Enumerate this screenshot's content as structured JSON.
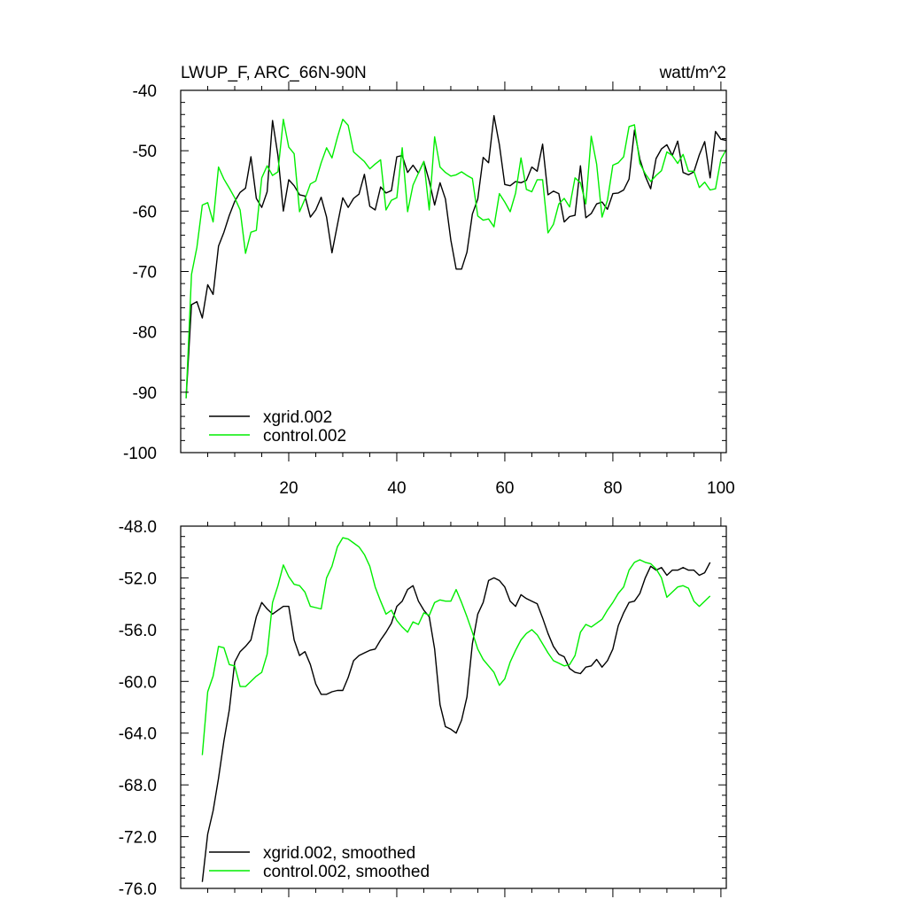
{
  "colors": {
    "xgrid": "#000000",
    "control": "#00ee00"
  },
  "chart_data": [
    {
      "type": "line",
      "title": "LWUP_F, ARC_66N-90N",
      "units": "watt/m^2",
      "xlim": [
        0,
        101
      ],
      "ylim": [
        -100,
        -40
      ],
      "yticks": [
        -100,
        -90,
        -80,
        -70,
        -60,
        -50,
        -40
      ],
      "ytick_labels": [
        "-100",
        "-90",
        "-80",
        "-70",
        "-60",
        "-50",
        "-40"
      ],
      "xticks": [
        20,
        40,
        60,
        80,
        100
      ],
      "xtick_labels": [
        "20",
        "40",
        "60",
        "80",
        "100"
      ],
      "legend": [
        "xgrid.002",
        "control.002"
      ],
      "legend_position": "bottom-left",
      "x": [
        1,
        2,
        3,
        4,
        5,
        6,
        7,
        8,
        9,
        10,
        11,
        12,
        13,
        14,
        15,
        16,
        17,
        18,
        19,
        20,
        21,
        22,
        23,
        24,
        25,
        26,
        27,
        28,
        29,
        30,
        31,
        32,
        33,
        34,
        35,
        36,
        37,
        38,
        39,
        40,
        41,
        42,
        43,
        44,
        45,
        46,
        47,
        48,
        49,
        50,
        51,
        52,
        53,
        54,
        55,
        56,
        57,
        58,
        59,
        60,
        61,
        62,
        63,
        64,
        65,
        66,
        67,
        68,
        69,
        70,
        71,
        72,
        73,
        74,
        75,
        76,
        77,
        78,
        79,
        80,
        81,
        82,
        83,
        84,
        85,
        86,
        87,
        88,
        89,
        90,
        91,
        92,
        93,
        94,
        95,
        96,
        97,
        98,
        99,
        100,
        101
      ],
      "series": [
        {
          "name": "xgrid.002",
          "color_key": "xgrid",
          "values": [
            -91,
            -75.5,
            -75,
            -77.7,
            -72.2,
            -73.8,
            -65.8,
            -63.5,
            -60.7,
            -58.4,
            -56.9,
            -56.2,
            -51,
            -57.9,
            -59.4,
            -56.8,
            -45,
            -50.8,
            -60,
            -54.8,
            -55.8,
            -57.3,
            -57.5,
            -61,
            -59.8,
            -57.7,
            -61,
            -66.9,
            -62.3,
            -57.8,
            -59.4,
            -57.9,
            -57.2,
            -53.9,
            -59.2,
            -59.8,
            -56,
            -57,
            -56.6,
            -51,
            -50.8,
            -53.6,
            -52.4,
            -53.7,
            -51.8,
            -55,
            -59,
            -55.3,
            -58,
            -64.8,
            -69.6,
            -69.6,
            -66.8,
            -60.5,
            -58,
            -51.1,
            -52,
            -44.2,
            -49,
            -55.6,
            -55.8,
            -55.1,
            -55.3,
            -54.9,
            -52.7,
            -53.4,
            -48.9,
            -57.3,
            -56.7,
            -57.1,
            -61.8,
            -60.9,
            -60.7,
            -52.5,
            -61.1,
            -60.4,
            -58.8,
            -58.5,
            -59.7,
            -57.1,
            -57,
            -56.5,
            -54.7,
            -46.6,
            -51.4,
            -54.2,
            -56.3,
            -51.3,
            -49.7,
            -49,
            -50.8,
            -48.4,
            -53.6,
            -54,
            -53.5,
            -50.7,
            -48.5,
            -54.5,
            -46.8,
            -48.1,
            -48.3
          ]
        },
        {
          "name": "control.002",
          "color_key": "control",
          "values": [
            -91,
            -70.5,
            -66,
            -59,
            -58.6,
            -61.8,
            -52.7,
            -54.7,
            -56.2,
            -57.8,
            -59.8,
            -67,
            -63.5,
            -63.2,
            -54.5,
            -52.5,
            -54.1,
            -53.5,
            -44.8,
            -49.4,
            -50.5,
            -60.1,
            -58,
            -55.5,
            -55,
            -52,
            -49.5,
            -51.2,
            -47.8,
            -44.8,
            -45.8,
            -50.2,
            -51,
            -51.8,
            -53,
            -52.2,
            -51.5,
            -59.8,
            -58.2,
            -57.8,
            -49.5,
            -60.1,
            -55.7,
            -53.7,
            -51.8,
            -59.8,
            -47.7,
            -52.7,
            -53.6,
            -54.2,
            -54,
            -53.5,
            -54.1,
            -54.6,
            -60.8,
            -61.5,
            -61.3,
            -62.6,
            -57.1,
            -58.5,
            -60.1,
            -57,
            -51.2,
            -56.4,
            -56.8,
            -54.8,
            -54.8,
            -63.6,
            -62.2,
            -58.8,
            -57.9,
            -59.3,
            -54.5,
            -55.3,
            -58.8,
            -47.6,
            -52.2,
            -61,
            -58.2,
            -52.4,
            -52,
            -51,
            -46,
            -45.7,
            -52.1,
            -53.8,
            -55.1,
            -54.1,
            -53.3,
            -50.2,
            -50.8,
            -52.1,
            -50.6,
            -53.4,
            -53.4,
            -56.1,
            -55.2,
            -56.5,
            -56.3,
            -51.4,
            -49.8
          ]
        }
      ]
    },
    {
      "type": "line",
      "title": "",
      "units": "",
      "xlim": [
        0,
        101
      ],
      "ylim": [
        -76,
        -48
      ],
      "yticks": [
        -76,
        -72,
        -68,
        -64,
        -60,
        -56,
        -52,
        -48
      ],
      "ytick_labels": [
        "-76.0",
        "-72.0",
        "-68.0",
        "-64.0",
        "-60.0",
        "-56.0",
        "-52.0",
        "-48.0"
      ],
      "xticks": [
        20,
        40,
        60,
        80,
        100
      ],
      "xtick_labels": [],
      "legend": [
        "xgrid.002, smoothed",
        "control.002, smoothed"
      ],
      "legend_position": "bottom-left",
      "x": [
        4,
        5,
        6,
        7,
        8,
        9,
        10,
        11,
        12,
        13,
        14,
        15,
        16,
        17,
        18,
        19,
        20,
        21,
        22,
        23,
        24,
        25,
        26,
        27,
        28,
        29,
        30,
        31,
        32,
        33,
        34,
        35,
        36,
        37,
        38,
        39,
        40,
        41,
        42,
        43,
        44,
        45,
        46,
        47,
        48,
        49,
        50,
        51,
        52,
        53,
        54,
        55,
        56,
        57,
        58,
        59,
        60,
        61,
        62,
        63,
        64,
        65,
        66,
        67,
        68,
        69,
        70,
        71,
        72,
        73,
        74,
        75,
        76,
        77,
        78,
        79,
        80,
        81,
        82,
        83,
        84,
        85,
        86,
        87,
        88,
        89,
        90,
        91,
        92,
        93,
        94,
        95,
        96,
        97,
        98
      ],
      "series": [
        {
          "name": "xgrid.002, smoothed",
          "color_key": "xgrid",
          "values": [
            -75.5,
            -71.8,
            -70,
            -67.5,
            -64.6,
            -62.2,
            -58.5,
            -57.7,
            -57.3,
            -56.8,
            -55,
            -53.9,
            -54.4,
            -54.8,
            -54.5,
            -54.2,
            -54.2,
            -56.8,
            -58,
            -57.7,
            -58.7,
            -60.2,
            -61,
            -61,
            -60.8,
            -60.7,
            -60.7,
            -59.7,
            -58.4,
            -58,
            -57.8,
            -57.6,
            -57.5,
            -56.8,
            -56.2,
            -55.5,
            -54.2,
            -53.8,
            -52.9,
            -52.6,
            -53.8,
            -54.5,
            -55,
            -57.5,
            -61.8,
            -63.5,
            -63.7,
            -64,
            -63,
            -61.2,
            -57.1,
            -54.8,
            -53.9,
            -52.2,
            -52.0,
            -52.2,
            -52.7,
            -53.8,
            -54.2,
            -53.3,
            -53.6,
            -53.8,
            -54.0,
            -55.1,
            -56.3,
            -57.3,
            -57.9,
            -58.1,
            -59,
            -59.3,
            -59.4,
            -58.9,
            -58.8,
            -58.3,
            -58.9,
            -58.4,
            -57.5,
            -55.7,
            -54.7,
            -53.9,
            -53.8,
            -53.2,
            -52.0,
            -51.1,
            -51.4,
            -51.2,
            -51.8,
            -51.4,
            -51.4,
            -51.2,
            -51.4,
            -51.4,
            -51.8,
            -51.6,
            -50.8
          ]
        },
        {
          "name": "control.002, smoothed",
          "color_key": "control",
          "values": [
            -65.7,
            -60.8,
            -59.6,
            -57.3,
            -57.4,
            -58.7,
            -58.8,
            -60.4,
            -60.4,
            -60.0,
            -59.6,
            -59.3,
            -57.9,
            -53.9,
            -52.6,
            -51.0,
            -51.9,
            -52.5,
            -52.6,
            -53.1,
            -54.2,
            -54.3,
            -54.4,
            -52.0,
            -51.1,
            -49.6,
            -48.9,
            -49.0,
            -49.3,
            -49.6,
            -50.2,
            -51.1,
            -52.7,
            -53.8,
            -54.8,
            -54.5,
            -55.3,
            -55.8,
            -56.2,
            -55.4,
            -55.6,
            -54.7,
            -54.9,
            -53.9,
            -53.7,
            -53.8,
            -53.8,
            -52.9,
            -53.9,
            -55.0,
            -56.2,
            -57.5,
            -58.3,
            -58.8,
            -59.3,
            -60.3,
            -59.8,
            -58.5,
            -57.6,
            -56.8,
            -56.3,
            -56.0,
            -56.4,
            -57.1,
            -57.8,
            -58.4,
            -58.6,
            -58.8,
            -58.7,
            -58.0,
            -56.2,
            -55.6,
            -55.8,
            -55.5,
            -55.2,
            -54.5,
            -53.9,
            -53.2,
            -52.7,
            -51.4,
            -50.8,
            -50.6,
            -50.8,
            -50.9,
            -51.3,
            -52.0,
            -53.5,
            -53.1,
            -52.7,
            -52.6,
            -52.8,
            -53.8,
            -54.2,
            -53.8,
            -53.4
          ]
        }
      ]
    }
  ]
}
